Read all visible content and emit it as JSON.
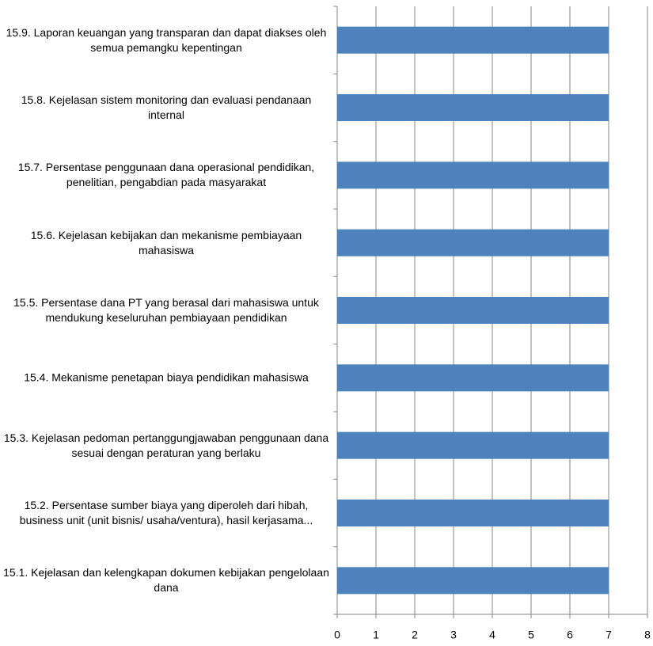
{
  "chart_data": {
    "type": "bar",
    "orientation": "horizontal",
    "categories": [
      "15.1. Kejelasan dan kelengkapan dokumen kebijakan pengelolaan dana",
      "15.2. Persentase sumber biaya yang diperoleh dari hibah, business unit (unit bisnis/ usaha/ventura), hasil kerjasama...",
      "15.3. Kejelasan pedoman pertanggungjawaban penggunaan dana sesuai dengan peraturan yang berlaku",
      "15.4. Mekanisme penetapan biaya pendidikan mahasiswa",
      "15.5. Persentase dana PT yang berasal dari mahasiswa untuk mendukung keseluruhan pembiayaan pendidikan",
      "15.6. Kejelasan kebijakan dan mekanisme pembiayaan mahasiswa",
      "15.7. Persentase penggunaan dana operasional pendidikan, penelitian, pengabdian pada masyarakat",
      "15.8. Kejelasan sistem monitoring dan evaluasi pendanaan internal",
      "15.9. Laporan keuangan yang transparan dan dapat diakses oleh semua pemangku kepentingan"
    ],
    "values": [
      7,
      7,
      7,
      7,
      7,
      7,
      7,
      7,
      7
    ],
    "color": "#4f81bd",
    "xlim": [
      0,
      8
    ],
    "xticks": [
      0,
      1,
      2,
      3,
      4,
      5,
      6,
      7,
      8
    ],
    "grid": true
  }
}
